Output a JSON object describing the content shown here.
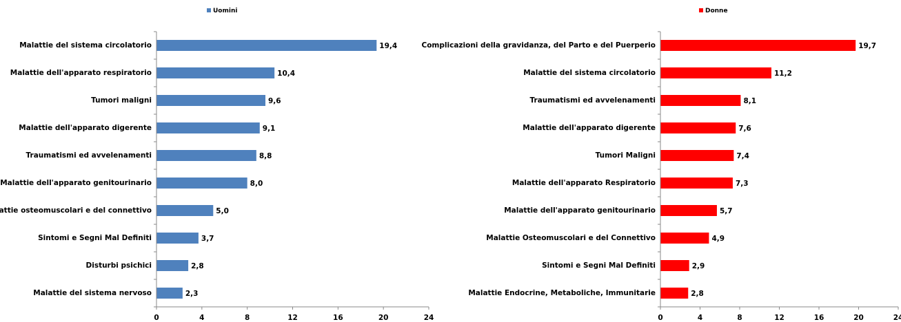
{
  "chart_data": [
    {
      "type": "bar",
      "orientation": "horizontal",
      "legend": "top",
      "series": [
        {
          "name": "Uomini",
          "color": "#4f81bd",
          "values": [
            19.4,
            10.4,
            9.6,
            9.1,
            8.8,
            8.0,
            5.0,
            3.7,
            2.8,
            2.3
          ],
          "value_labels": [
            "19,4",
            "10,4",
            "9,6",
            "9,1",
            "8,8",
            "8,0",
            "5,0",
            "3,7",
            "2,8",
            "2,3"
          ]
        }
      ],
      "categories": [
        "Malattie del sistema circolatorio",
        "Malattie dell'apparato respiratorio",
        "Tumori maligni",
        "Malattie dell'apparato digerente",
        "Traumatismi ed avvelenamenti",
        "Malattie dell'apparato genitourinario",
        "Malattie osteomuscolari e del connettivo",
        "Sintomi e Segni Mal Definiti",
        "Disturbi psichici",
        "Malattie del sistema nervoso"
      ],
      "xlim": [
        0,
        24
      ],
      "xticks": [
        0,
        4,
        8,
        12,
        16,
        20,
        24
      ]
    },
    {
      "type": "bar",
      "orientation": "horizontal",
      "legend": "top",
      "series": [
        {
          "name": "Donne",
          "color": "#ff0000",
          "values": [
            19.7,
            11.2,
            8.1,
            7.6,
            7.4,
            7.3,
            5.7,
            4.9,
            2.9,
            2.8
          ],
          "value_labels": [
            "19,7",
            "11,2",
            "8,1",
            "7,6",
            "7,4",
            "7,3",
            "5,7",
            "4,9",
            "2,9",
            "2,8"
          ]
        }
      ],
      "categories": [
        "Complicazioni della gravidanza, del Parto e del Puerperio",
        "Malattie del sistema circolatorio",
        "Traumatismi ed avvelenamenti",
        "Malattie dell'apparato digerente",
        "Tumori Maligni",
        "Malattie dell'apparato Respiratorio",
        "Malattie dell'apparato genitourinario",
        "Malattie Osteomuscolari e del Connettivo",
        "Sintomi e Segni Mal Definiti",
        "Malattie Endocrine, Metaboliche, Immunitarie"
      ],
      "xlim": [
        0,
        24
      ],
      "xticks": [
        0,
        4,
        8,
        12,
        16,
        20,
        24
      ]
    }
  ]
}
